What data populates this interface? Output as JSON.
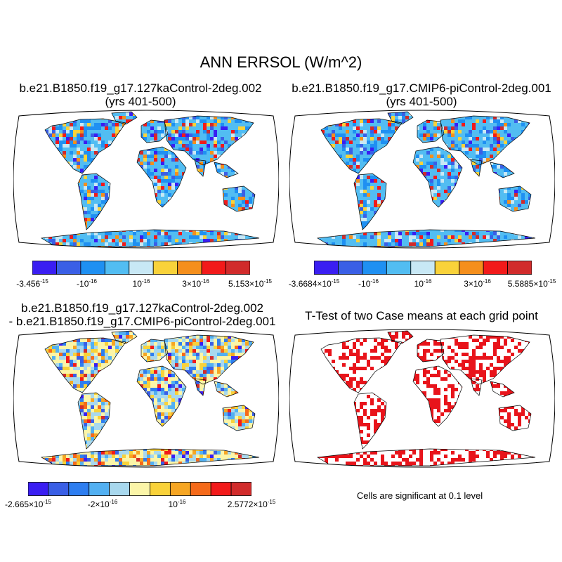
{
  "title": "ANN ERRSOL (W/m^2)",
  "panels": [
    {
      "id": "case1",
      "title_lines": [
        "b.e21.B1850.f19_g17.127kaControl-2deg.002",
        "(yrs 401-500)"
      ],
      "colorbar": {
        "colors": [
          "#3a1ef2",
          "#3a5fe6",
          "#1f90f2",
          "#52bdf2",
          "#c8e8f5",
          "#f9d23a",
          "#f58f1c",
          "#f21a1a",
          "#d12b2b"
        ],
        "labels": [
          {
            "m": "-3.456",
            "e": "-15"
          },
          {
            "m": "-10",
            "e": "-16"
          },
          {
            "m": "10",
            "e": "-16"
          },
          {
            "m": "3×10",
            "e": "-16"
          },
          {
            "m": "5.153×10",
            "e": "-15"
          }
        ]
      }
    },
    {
      "id": "case2",
      "title_lines": [
        "b.e21.B1850.f19_g17.CMIP6-piControl-2deg.001",
        "(yrs 401-500)"
      ],
      "colorbar": {
        "colors": [
          "#3a1ef2",
          "#3a5fe6",
          "#1f90f2",
          "#52bdf2",
          "#c8e8f5",
          "#f9d23a",
          "#f58f1c",
          "#f21a1a",
          "#d12b2b"
        ],
        "labels": [
          {
            "m": "-3.6684×10",
            "e": "-15"
          },
          {
            "m": "-10",
            "e": "-16"
          },
          {
            "m": "10",
            "e": "-16"
          },
          {
            "m": "3×10",
            "e": "-16"
          },
          {
            "m": "5.5885×10",
            "e": "-15"
          }
        ]
      }
    },
    {
      "id": "difference",
      "title_lines": [
        "b.e21.B1850.f19_g17.127kaControl-2deg.002",
        "- b.e21.B1850.f19_g17.CMIP6-piControl-2deg.001"
      ],
      "colorbar": {
        "colors": [
          "#3a1ef2",
          "#3a5fe6",
          "#2e7ef0",
          "#52b0f2",
          "#a8d8ee",
          "#fbf5a8",
          "#f9d23a",
          "#f6a623",
          "#f56a1a",
          "#f21a1a",
          "#d12b2b"
        ],
        "labels": [
          {
            "m": "-2.665×10",
            "e": "-15"
          },
          {
            "m": "-2×10",
            "e": "-16"
          },
          {
            "m": "10",
            "e": "-16"
          },
          {
            "m": "2.5772×10",
            "e": "-15"
          }
        ]
      }
    },
    {
      "id": "ttest",
      "title_lines": [
        "T-Test of two Case means at each grid point"
      ],
      "note": "Cells are significant at 0.1 level",
      "cell_color": "#e8141b"
    }
  ]
}
